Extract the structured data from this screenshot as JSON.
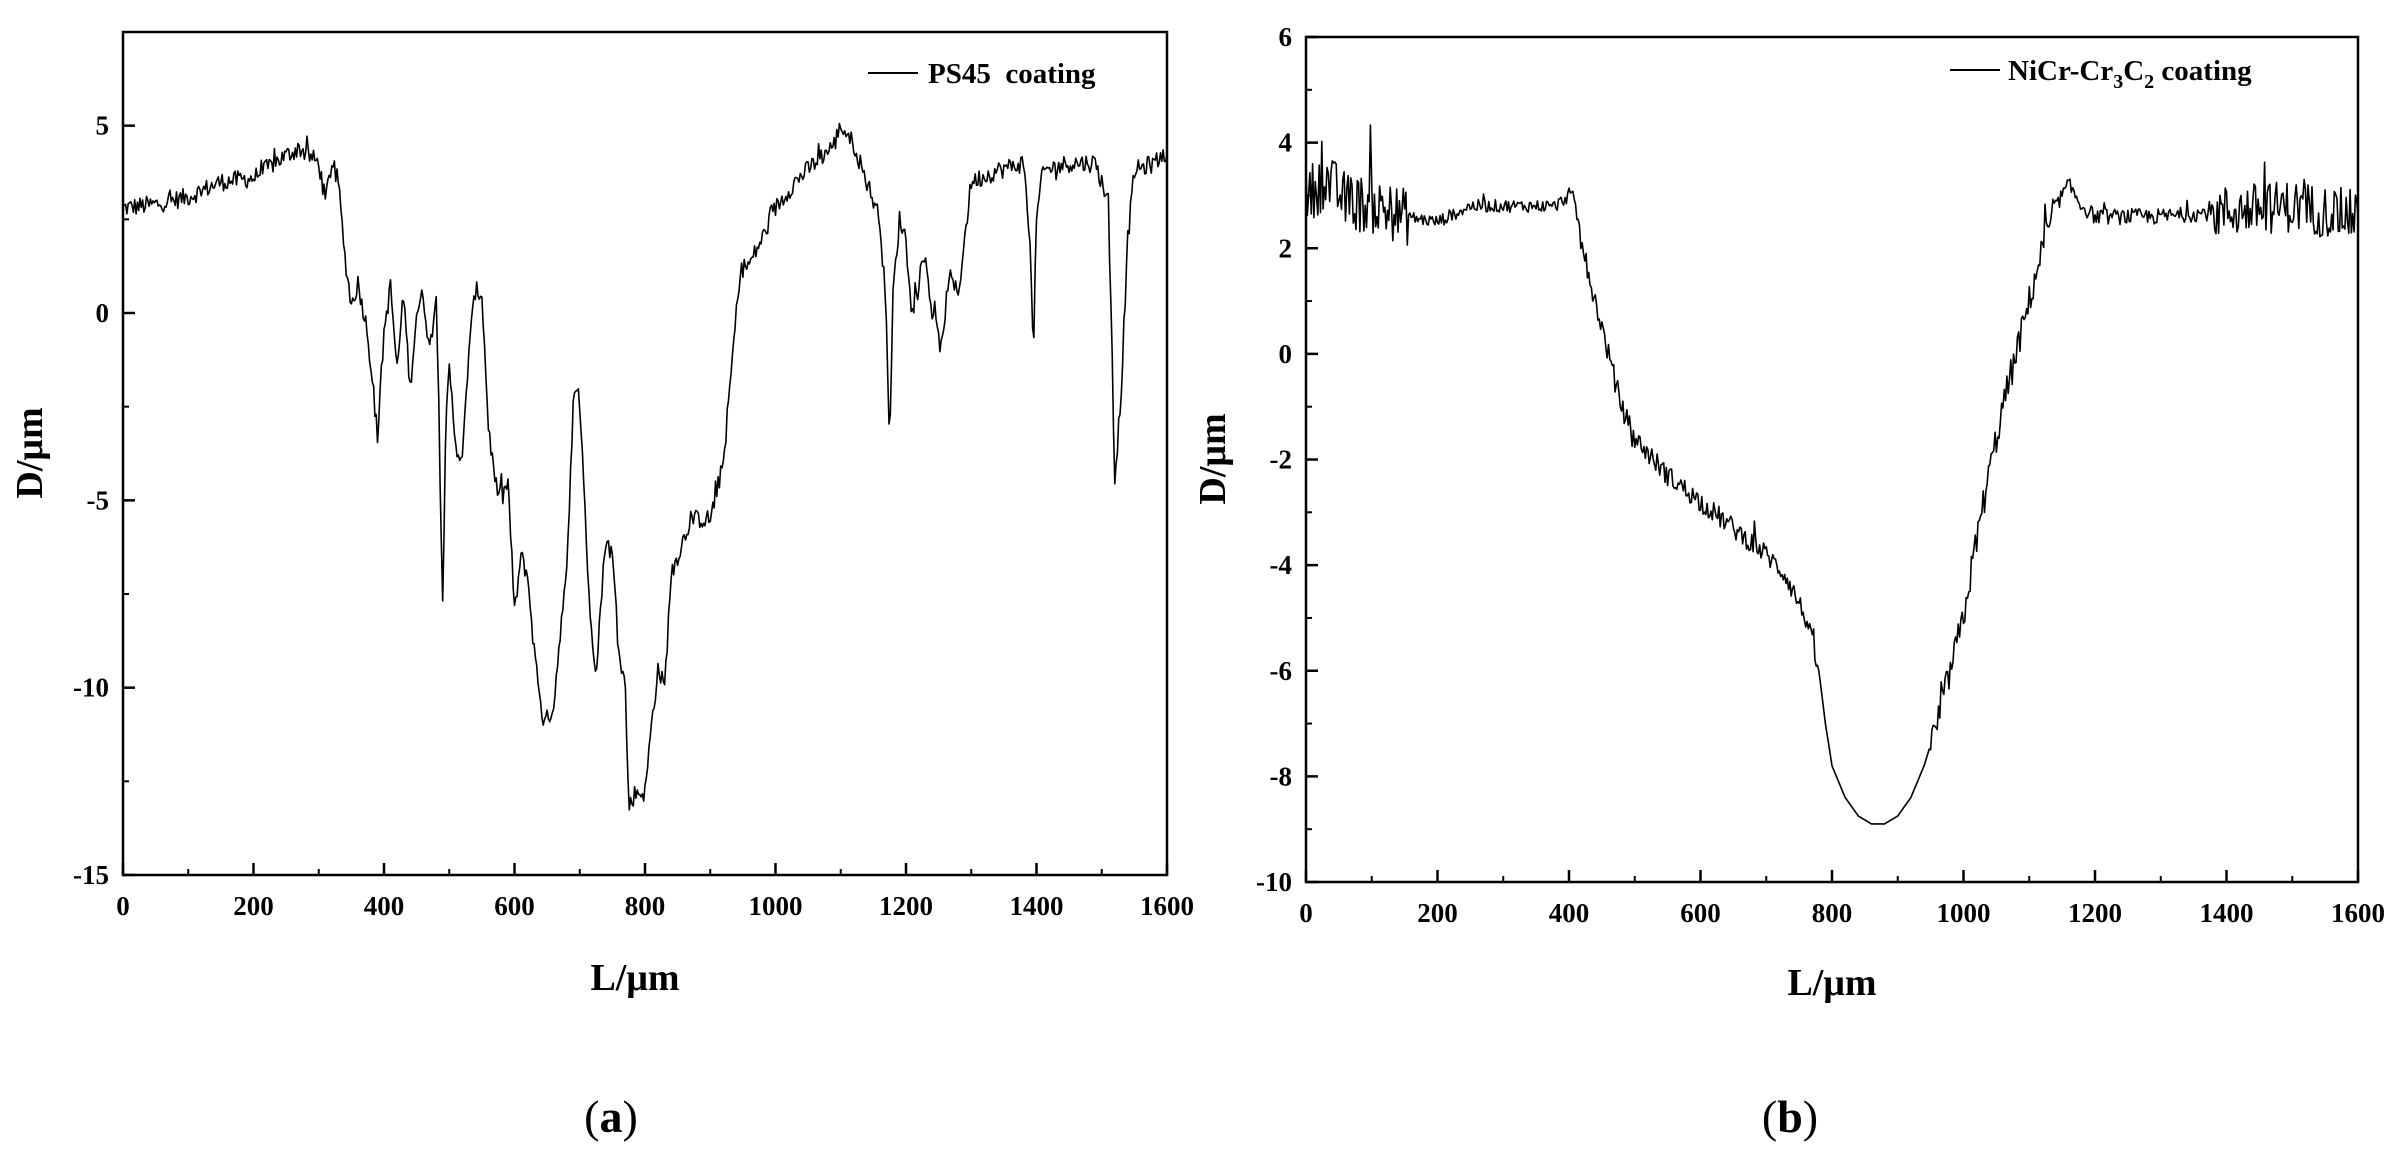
{
  "chart_data": [
    {
      "type": "line",
      "panel_label": "a",
      "xlabel": "L/μm",
      "ylabel": "D/μm",
      "xlim": [
        0,
        1600
      ],
      "ylim": [
        -15,
        7.5
      ],
      "xticks": [
        "0",
        "200",
        "400",
        "600",
        "800",
        "1000",
        "1200",
        "1400",
        "1600"
      ],
      "yticks": [
        "5",
        "0",
        "-5",
        "-10",
        "-15"
      ],
      "ytick_values": [
        5,
        0,
        -5,
        -10,
        -15
      ],
      "xtick_values": [
        0,
        200,
        400,
        600,
        800,
        1000,
        1200,
        1400,
        1600
      ],
      "grid": false,
      "legend_position": "top-right",
      "series": [
        {
          "name": "PS45  coating",
          "noise": 0.25,
          "x": [
            0,
            50,
            100,
            150,
            200,
            240,
            270,
            300,
            310,
            320,
            330,
            340,
            350,
            360,
            375,
            390,
            400,
            410,
            420,
            430,
            440,
            450,
            460,
            470,
            480,
            490,
            495,
            500,
            510,
            520,
            530,
            540,
            550,
            560,
            570,
            580,
            590,
            600,
            610,
            620,
            630,
            645,
            660,
            670,
            680,
            690,
            697,
            705,
            715,
            725,
            740,
            750,
            760,
            770,
            775,
            785,
            800,
            810,
            820,
            830,
            840,
            850,
            870,
            900,
            920,
            935,
            945,
            950,
            960,
            980,
            1000,
            1030,
            1060,
            1090,
            1100,
            1120,
            1140,
            1160,
            1170,
            1175,
            1180,
            1190,
            1200,
            1210,
            1230,
            1240,
            1255,
            1265,
            1280,
            1300,
            1340,
            1380,
            1390,
            1395,
            1400,
            1410,
            1450,
            1490,
            1510,
            1520,
            1530,
            1540,
            1550,
            1580,
            1600
          ],
          "y": [
            2.8,
            2.9,
            3.1,
            3.5,
            3.6,
            4.1,
            4.4,
            4.0,
            3.0,
            4.0,
            3.5,
            1.5,
            0.2,
            0.8,
            -0.5,
            -3.3,
            -0.5,
            0.7,
            -1.5,
            0.5,
            -2.0,
            0.0,
            0.5,
            -1.0,
            0.5,
            -7.6,
            -3.0,
            -1.5,
            -3.5,
            -4.0,
            -1.0,
            0.6,
            0.5,
            -3.0,
            -4.5,
            -5.0,
            -4.5,
            -8.0,
            -6.5,
            -7.0,
            -9.0,
            -11.0,
            -10.5,
            -8.5,
            -7.0,
            -2.5,
            -1.8,
            -4.0,
            -8.0,
            -9.5,
            -6.0,
            -6.5,
            -9.0,
            -10.0,
            -13.2,
            -12.8,
            -12.8,
            -11.0,
            -9.5,
            -10.0,
            -7.0,
            -6.5,
            -5.5,
            -5.5,
            -4.0,
            -1.0,
            1.0,
            1.2,
            1.3,
            2.0,
            2.8,
            3.5,
            4.0,
            4.5,
            5.0,
            4.5,
            3.5,
            2.5,
            0.0,
            -3.8,
            0.5,
            2.5,
            2.0,
            0.0,
            1.5,
            0.0,
            -1.0,
            1.0,
            0.5,
            3.5,
            3.8,
            4.0,
            2.0,
            -1.2,
            2.5,
            3.8,
            4.0,
            4.0,
            3.0,
            -4.5,
            -2.0,
            2.0,
            3.8,
            4.0,
            4.3
          ]
        }
      ]
    },
    {
      "type": "line",
      "panel_label": "b",
      "xlabel": "L/μm",
      "ylabel": "D/μm",
      "xlim": [
        0,
        1600
      ],
      "ylim": [
        -10,
        6
      ],
      "xticks": [
        "0",
        "200",
        "400",
        "600",
        "800",
        "1000",
        "1200",
        "1400",
        "1600"
      ],
      "yticks": [
        "6",
        "4",
        "2",
        "0",
        "-2",
        "-4",
        "-6",
        "-8",
        "-10"
      ],
      "ytick_values": [
        6,
        4,
        2,
        0,
        -2,
        -4,
        -6,
        -8,
        -10
      ],
      "xtick_values": [
        0,
        200,
        400,
        600,
        800,
        1000,
        1200,
        1400,
        1600
      ],
      "grid": false,
      "legend_position": "top-right",
      "series": [
        {
          "name": "NiCr-Cr3C2 coating",
          "name_parts": [
            "NiCr-Cr",
            "3",
            "C",
            "2",
            " coating"
          ],
          "x": [
            0,
            30,
            60,
            100,
            150,
            200,
            250,
            300,
            350,
            380,
            400,
            410,
            420,
            440,
            460,
            480,
            500,
            550,
            600,
            650,
            700,
            730,
            760,
            780,
            790,
            800,
            820,
            840,
            860,
            880,
            900,
            920,
            940,
            960,
            980,
            1000,
            1020,
            1040,
            1060,
            1080,
            1100,
            1120,
            1140,
            1160,
            1180,
            1200,
            1300,
            1400,
            1500,
            1600
          ],
          "y": [
            3.0,
            3.3,
            2.9,
            2.8,
            2.6,
            2.5,
            2.8,
            2.8,
            2.8,
            2.8,
            3.0,
            2.8,
            2.0,
            1.0,
            0.0,
            -1.0,
            -1.6,
            -2.3,
            -2.8,
            -3.3,
            -3.8,
            -4.2,
            -5.0,
            -6.0,
            -7.0,
            -7.8,
            -8.4,
            -8.75,
            -8.9,
            -8.9,
            -8.75,
            -8.4,
            -7.8,
            -7.0,
            -6.0,
            -5.0,
            -3.5,
            -2.2,
            -1.0,
            0.0,
            1.0,
            2.0,
            2.8,
            3.2,
            2.8,
            2.6,
            2.6,
            2.7,
            2.8,
            2.6
          ],
          "noise_segments": [
            {
              "x0": 0,
              "x1": 160,
              "amp": 0.55
            },
            {
              "x0": 160,
              "x1": 400,
              "amp": 0.12
            },
            {
              "x0": 400,
              "x1": 780,
              "amp": 0.2
            },
            {
              "x0": 780,
              "x1": 950,
              "amp": 0.0
            },
            {
              "x0": 950,
              "x1": 1130,
              "amp": 0.3
            },
            {
              "x0": 1130,
              "x1": 1380,
              "amp": 0.15
            },
            {
              "x0": 1380,
              "x1": 1600,
              "amp": 0.5
            }
          ]
        }
      ]
    }
  ]
}
